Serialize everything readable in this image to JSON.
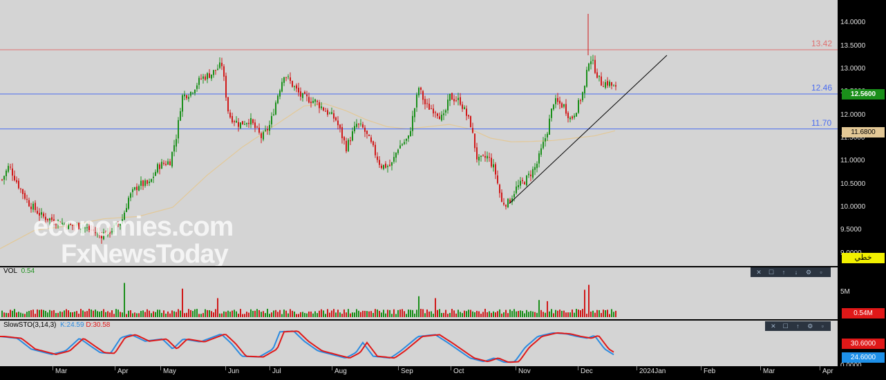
{
  "price_axis": {
    "ticks": [
      "14.0000",
      "13.5000",
      "13.0000",
      "12.5000",
      "12.0000",
      "11.5000",
      "11.0000",
      "10.5000",
      "10.0000",
      "9.5000",
      "9.0000"
    ],
    "tick_values": [
      14.0,
      13.5,
      13.0,
      12.5,
      12.0,
      11.5,
      11.0,
      10.5,
      10.0,
      9.5,
      9.0
    ],
    "last_price": "12.5600",
    "ma_value": "11.6800",
    "mode_button": "خطي"
  },
  "levels": [
    {
      "label": "13.42",
      "value": 13.42,
      "color": "#e07070"
    },
    {
      "label": "12.46",
      "value": 12.46,
      "color": "#4a6cf0"
    },
    {
      "label": "11.70",
      "value": 11.7,
      "color": "#4a6cf0"
    }
  ],
  "watermark": {
    "line1": "economies.com",
    "line2": "FxNewsToday"
  },
  "volume_panel": {
    "label": "VOL",
    "value": "0.54",
    "axis_tick": "5M",
    "last": "0.54M"
  },
  "stoch_panel": {
    "label": "SlowSTO(3,14,3)",
    "k_label": "K:24.59",
    "d_label": "D:30.58",
    "k_tag": "24.6000",
    "d_tag": "30.6000",
    "axis_bottom": "0.0000"
  },
  "x_axis": {
    "labels": [
      "Mar",
      "Apr",
      "May",
      "Jun",
      "Jul",
      "Aug",
      "Sep",
      "Oct",
      "Nov",
      "Dec",
      "2024Jan",
      "Feb",
      "Mar",
      "Apr"
    ]
  },
  "colors": {
    "up": "#1a8f1a",
    "down": "#d01818",
    "ma": "#e3c896",
    "k_line": "#2a8ae0",
    "d_line": "#e01818"
  },
  "chart_data": {
    "type": "candlestick",
    "price_range": [
      8.8,
      14.35
    ],
    "anchors": [
      [
        2,
        10.6
      ],
      [
        12,
        10.9
      ],
      [
        25,
        10.5
      ],
      [
        40,
        10.1
      ],
      [
        60,
        9.8
      ],
      [
        80,
        9.7
      ],
      [
        100,
        9.6
      ],
      [
        115,
        9.6
      ],
      [
        130,
        9.5
      ],
      [
        145,
        9.4
      ],
      [
        160,
        9.5
      ],
      [
        175,
        9.7
      ],
      [
        185,
        10.2
      ],
      [
        200,
        10.5
      ],
      [
        215,
        10.5
      ],
      [
        228,
        10.9
      ],
      [
        245,
        11.0
      ],
      [
        255,
        11.6
      ],
      [
        262,
        12.4
      ],
      [
        275,
        12.5
      ],
      [
        290,
        12.8
      ],
      [
        305,
        12.9
      ],
      [
        320,
        13.1
      ],
      [
        330,
        12.0
      ],
      [
        345,
        11.8
      ],
      [
        360,
        11.9
      ],
      [
        378,
        11.5
      ],
      [
        390,
        11.8
      ],
      [
        400,
        12.4
      ],
      [
        410,
        12.9
      ],
      [
        420,
        12.7
      ],
      [
        435,
        12.4
      ],
      [
        455,
        12.3
      ],
      [
        470,
        12.1
      ],
      [
        485,
        11.9
      ],
      [
        500,
        11.3
      ],
      [
        515,
        11.8
      ],
      [
        525,
        11.7
      ],
      [
        535,
        11.4
      ],
      [
        550,
        10.9
      ],
      [
        565,
        10.9
      ],
      [
        575,
        11.3
      ],
      [
        590,
        11.5
      ],
      [
        605,
        12.6
      ],
      [
        615,
        12.2
      ],
      [
        630,
        12.1
      ],
      [
        640,
        11.9
      ],
      [
        650,
        12.4
      ],
      [
        665,
        12.3
      ],
      [
        680,
        11.8
      ],
      [
        690,
        11.0
      ],
      [
        705,
        11.1
      ],
      [
        715,
        10.8
      ],
      [
        725,
        10.1
      ],
      [
        735,
        10.1
      ],
      [
        745,
        10.4
      ],
      [
        760,
        10.6
      ],
      [
        775,
        10.9
      ],
      [
        790,
        11.6
      ],
      [
        800,
        12.3
      ],
      [
        815,
        12.2
      ],
      [
        825,
        11.9
      ],
      [
        835,
        12.2
      ],
      [
        845,
        12.6
      ],
      [
        852,
        13.3
      ],
      [
        860,
        13.0
      ],
      [
        868,
        12.7
      ],
      [
        880,
        12.7
      ],
      [
        890,
        12.56
      ]
    ],
    "ma_anchors": [
      [
        0,
        9.1
      ],
      [
        50,
        9.5
      ],
      [
        100,
        9.6
      ],
      [
        150,
        9.75
      ],
      [
        200,
        9.8
      ],
      [
        250,
        10.0
      ],
      [
        300,
        10.7
      ],
      [
        350,
        11.3
      ],
      [
        380,
        11.6
      ],
      [
        410,
        11.9
      ],
      [
        440,
        12.2
      ],
      [
        470,
        12.25
      ],
      [
        500,
        12.1
      ],
      [
        530,
        11.9
      ],
      [
        560,
        11.75
      ],
      [
        590,
        11.7
      ],
      [
        620,
        11.75
      ],
      [
        650,
        11.8
      ],
      [
        680,
        11.7
      ],
      [
        710,
        11.5
      ],
      [
        740,
        11.42
      ],
      [
        770,
        11.43
      ],
      [
        800,
        11.45
      ],
      [
        830,
        11.5
      ],
      [
        860,
        11.55
      ],
      [
        890,
        11.66
      ]
    ],
    "trendline": {
      "from": [
        737,
        10.08
      ],
      "to": [
        965,
        13.3
      ]
    },
    "volume_spikes": [
      [
        180,
        0.9
      ],
      [
        262,
        0.75
      ],
      [
        315,
        0.5
      ],
      [
        605,
        0.55
      ],
      [
        630,
        0.5
      ],
      [
        778,
        0.45
      ],
      [
        790,
        0.42
      ],
      [
        845,
        0.72
      ],
      [
        850,
        0.85
      ]
    ],
    "stoch_anchors": [
      [
        0,
        75
      ],
      [
        25,
        70
      ],
      [
        45,
        40
      ],
      [
        75,
        25
      ],
      [
        95,
        35
      ],
      [
        115,
        70
      ],
      [
        130,
        50
      ],
      [
        145,
        30
      ],
      [
        160,
        28
      ],
      [
        175,
        72
      ],
      [
        190,
        80
      ],
      [
        210,
        62
      ],
      [
        235,
        68
      ],
      [
        250,
        40
      ],
      [
        265,
        68
      ],
      [
        290,
        60
      ],
      [
        320,
        82
      ],
      [
        335,
        55
      ],
      [
        350,
        20
      ],
      [
        375,
        18
      ],
      [
        395,
        40
      ],
      [
        405,
        88
      ],
      [
        425,
        90
      ],
      [
        440,
        62
      ],
      [
        460,
        35
      ],
      [
        480,
        25
      ],
      [
        500,
        15
      ],
      [
        515,
        30
      ],
      [
        525,
        58
      ],
      [
        540,
        20
      ],
      [
        565,
        15
      ],
      [
        580,
        35
      ],
      [
        605,
        75
      ],
      [
        630,
        80
      ],
      [
        650,
        55
      ],
      [
        665,
        35
      ],
      [
        680,
        15
      ],
      [
        700,
        5
      ],
      [
        715,
        15
      ],
      [
        730,
        3
      ],
      [
        745,
        5
      ],
      [
        760,
        45
      ],
      [
        778,
        75
      ],
      [
        800,
        85
      ],
      [
        820,
        82
      ],
      [
        835,
        75
      ],
      [
        850,
        70
      ],
      [
        860,
        78
      ],
      [
        875,
        40
      ],
      [
        890,
        22
      ]
    ],
    "stoch_range": [
      0,
      100
    ]
  }
}
